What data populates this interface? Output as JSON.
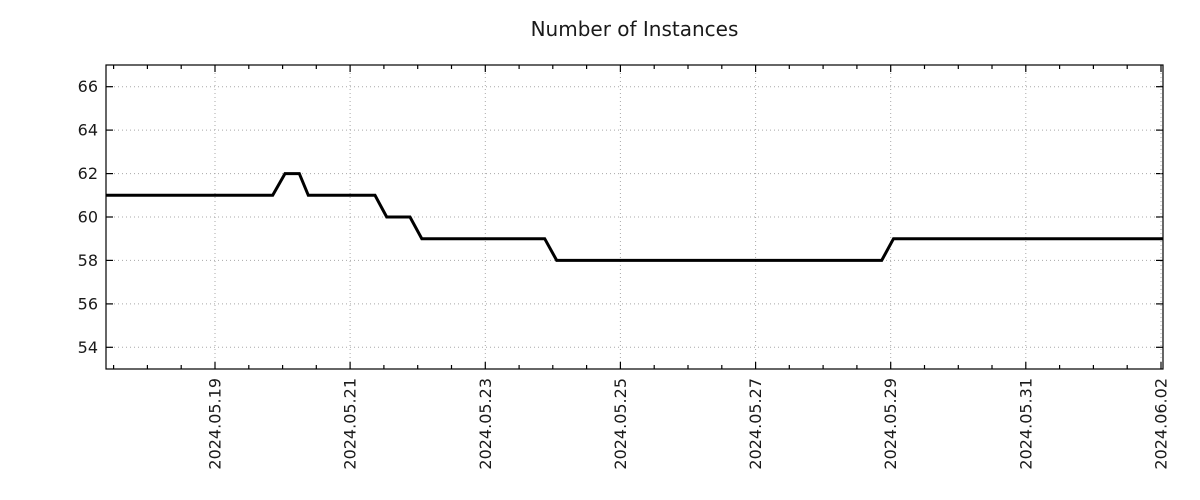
{
  "chart_data": {
    "type": "line",
    "title": "Number of Instances",
    "xlabel": "",
    "ylabel": "",
    "x_unit": "days relative to 2024-05-19 00:00",
    "xlim": [
      -1.613,
      14.03
    ],
    "ylim": [
      53,
      67
    ],
    "grid": true,
    "legend": "none",
    "y_ticks": [
      54,
      56,
      58,
      60,
      62,
      64,
      66
    ],
    "x_ticks": [
      {
        "pos": 0,
        "label": "2024.05.19"
      },
      {
        "pos": 2,
        "label": "2024.05.21"
      },
      {
        "pos": 4,
        "label": "2024.05.23"
      },
      {
        "pos": 6,
        "label": "2024.05.25"
      },
      {
        "pos": 8,
        "label": "2024.05.27"
      },
      {
        "pos": 10,
        "label": "2024.05.29"
      },
      {
        "pos": 12,
        "label": "2024.05.31"
      },
      {
        "pos": 14,
        "label": "2024.06.02"
      }
    ],
    "x_minor_tick_step": 0.5,
    "series": [
      {
        "name": "instances",
        "color": "#000000",
        "line_width": 3,
        "points": [
          [
            -1.613,
            61
          ],
          [
            0.854,
            61
          ],
          [
            1.036,
            62
          ],
          [
            1.247,
            62
          ],
          [
            1.381,
            61
          ],
          [
            2.368,
            61
          ],
          [
            2.541,
            60
          ],
          [
            2.886,
            60
          ],
          [
            3.06,
            59
          ],
          [
            4.88,
            59
          ],
          [
            5.057,
            58
          ],
          [
            9.867,
            58
          ],
          [
            10.042,
            59
          ],
          [
            14.03,
            59
          ]
        ]
      }
    ]
  },
  "colors": {
    "background": "#ffffff",
    "line": "#000000",
    "grid": "#a8a8a8",
    "border": "#000000",
    "text": "#1a1a1a"
  }
}
